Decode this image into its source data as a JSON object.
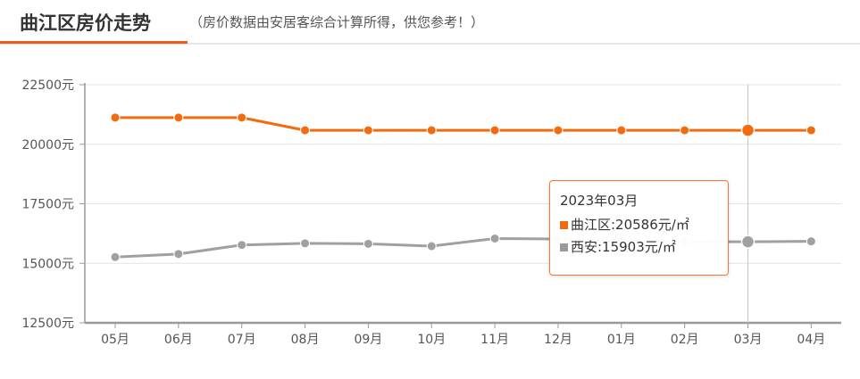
{
  "header": {
    "title": "曲江区房价走势",
    "note": "（房价数据由安居客综合计算所得，供您参考！）"
  },
  "colors": {
    "accent": "#f05a1a",
    "series_qujiang": "#f26b0f",
    "series_xian": "#a0a0a0"
  },
  "chart_data": {
    "type": "line",
    "categories": [
      "05月",
      "06月",
      "07月",
      "08月",
      "09月",
      "10月",
      "11月",
      "12月",
      "01月",
      "02月",
      "03月",
      "04月"
    ],
    "series": [
      {
        "name": "曲江区",
        "values": [
          21120,
          21120,
          21120,
          20586,
          20586,
          20586,
          20586,
          20586,
          20586,
          20586,
          20586,
          20586
        ]
      },
      {
        "name": "西安",
        "values": [
          15260,
          15390,
          15770,
          15840,
          15820,
          15720,
          16040,
          16020,
          15920,
          15910,
          15903,
          15920
        ]
      }
    ],
    "y_tick_labels": [
      "22500元",
      "20000元",
      "17500元",
      "15000元",
      "12500元"
    ],
    "y_ticks": [
      22500,
      20000,
      17500,
      15000,
      12500
    ],
    "ylim": [
      12500,
      22500
    ],
    "grid": true,
    "highlight_index": 10
  },
  "tooltip": {
    "title": "2023年03月",
    "rows": [
      {
        "label": "曲江区:20586元/㎡"
      },
      {
        "label": "西安:15903元/㎡"
      }
    ]
  }
}
